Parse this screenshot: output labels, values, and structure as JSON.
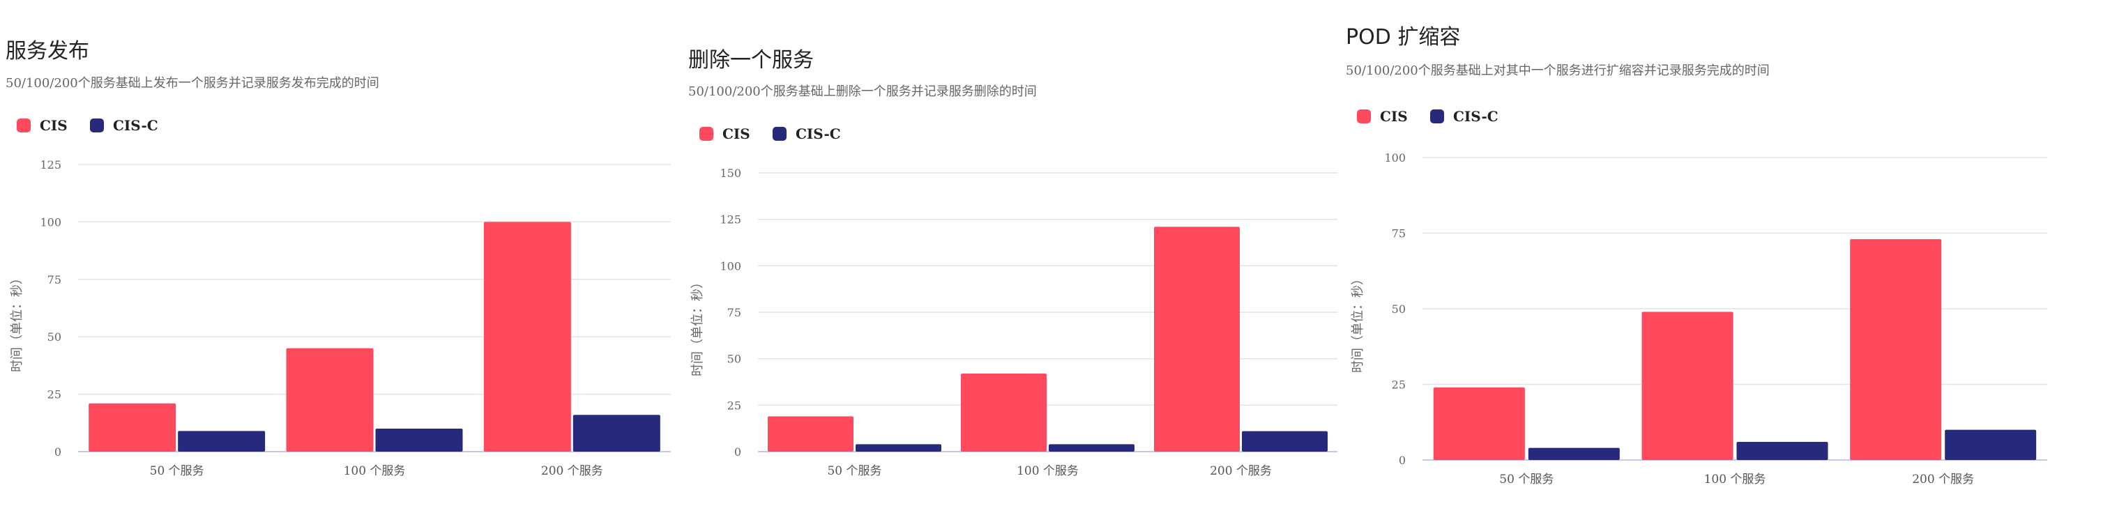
{
  "colors": {
    "CIS": "#ff4a5e",
    "CIS-C": "#272a7c"
  },
  "chart_data": [
    {
      "type": "bar",
      "title": "服务发布",
      "subtitle": "50/100/200个服务基础上发布一个服务并记录服务发布完成的时间",
      "ylabel": "时间（单位：秒）",
      "xlabel": "",
      "categories": [
        "50 个服务",
        "100 个服务",
        "200 个服务"
      ],
      "ylim": [
        0,
        125
      ],
      "yticks": [
        0,
        25,
        50,
        75,
        100,
        125
      ],
      "grid": true,
      "legend_position": "top-left",
      "series": [
        {
          "name": "CIS",
          "values": [
            21,
            45,
            100
          ]
        },
        {
          "name": "CIS-C",
          "values": [
            9,
            10,
            16
          ]
        }
      ]
    },
    {
      "type": "bar",
      "title": "删除一个服务",
      "subtitle": "50/100/200个服务基础上删除一个服务并记录服务删除的时间",
      "ylabel": "时间（单位：秒）",
      "xlabel": "",
      "categories": [
        "50 个服务",
        "100 个服务",
        "200 个服务"
      ],
      "ylim": [
        0,
        150
      ],
      "yticks": [
        0,
        25,
        50,
        75,
        100,
        125,
        150
      ],
      "grid": true,
      "legend_position": "top-left",
      "series": [
        {
          "name": "CIS",
          "values": [
            19,
            42,
            121
          ]
        },
        {
          "name": "CIS-C",
          "values": [
            4,
            4,
            11
          ]
        }
      ]
    },
    {
      "type": "bar",
      "title": "POD 扩缩容",
      "subtitle": "50/100/200个服务基础上对其中一个服务进行扩缩容并记录服务完成的时间",
      "ylabel": "时间（单位：秒）",
      "xlabel": "",
      "categories": [
        "50 个服务",
        "100 个服务",
        "200 个服务"
      ],
      "ylim": [
        0,
        100
      ],
      "yticks": [
        0,
        25,
        50,
        75,
        100
      ],
      "grid": true,
      "legend_position": "top-left",
      "series": [
        {
          "name": "CIS",
          "values": [
            24,
            49,
            73
          ]
        },
        {
          "name": "CIS-C",
          "values": [
            4,
            6,
            10
          ]
        }
      ]
    }
  ]
}
